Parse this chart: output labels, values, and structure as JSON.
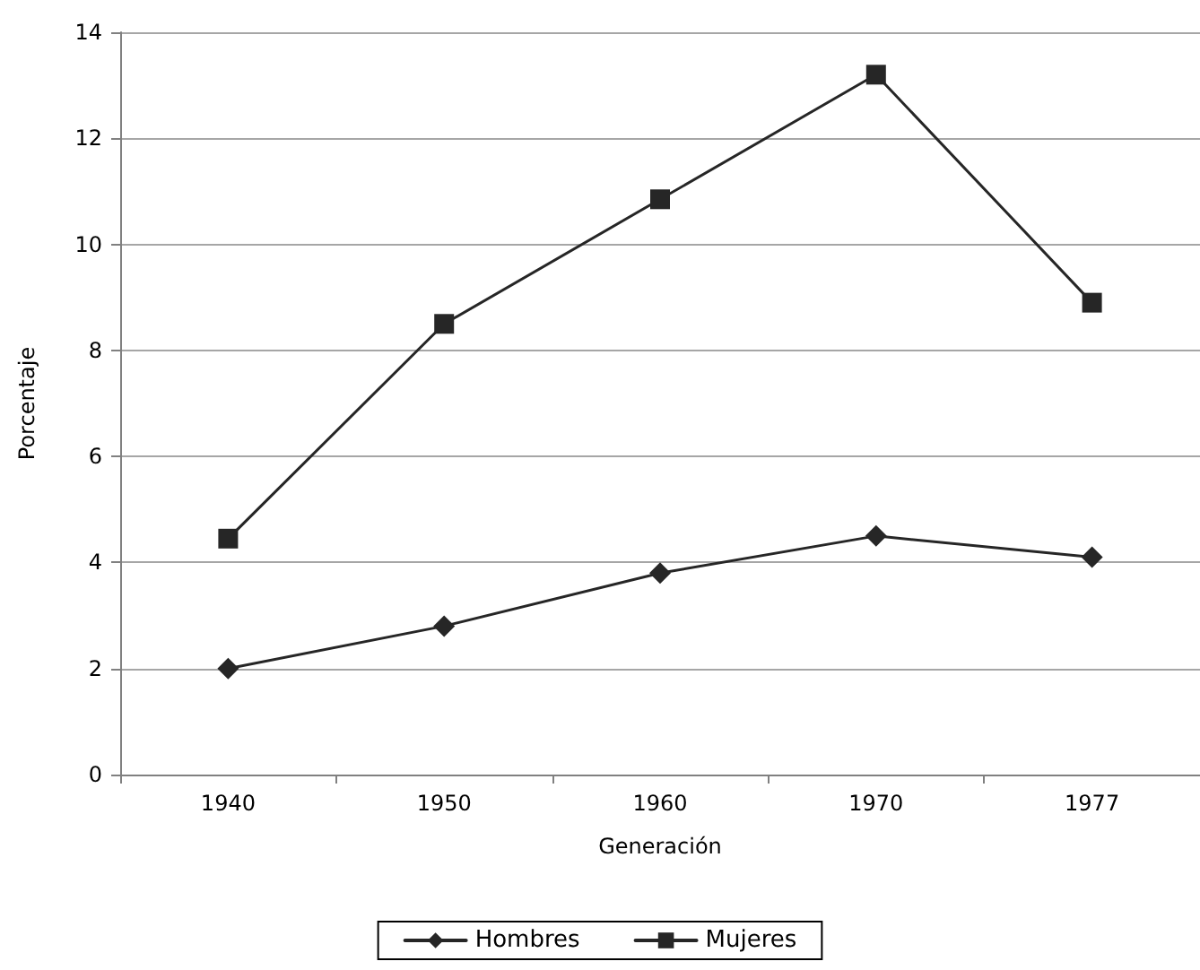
{
  "chart_data": {
    "type": "line",
    "xlabel": "Generación",
    "ylabel": "Porcentaje",
    "categories": [
      "1940",
      "1950",
      "1960",
      "1970",
      "1977"
    ],
    "series": [
      {
        "name": "Hombres",
        "color": "#262626",
        "marker": "diamond",
        "values": [
          2.0,
          2.8,
          3.8,
          4.5,
          4.1
        ]
      },
      {
        "name": "Mujeres",
        "color": "#262626",
        "marker": "square",
        "values": [
          4.45,
          8.5,
          10.85,
          13.2,
          8.9
        ]
      }
    ],
    "ylim": [
      0,
      14
    ],
    "yticks": [
      0,
      2,
      4,
      6,
      8,
      10,
      12,
      14
    ],
    "grid": "y",
    "legend": "bottom",
    "line_style": "solid"
  }
}
